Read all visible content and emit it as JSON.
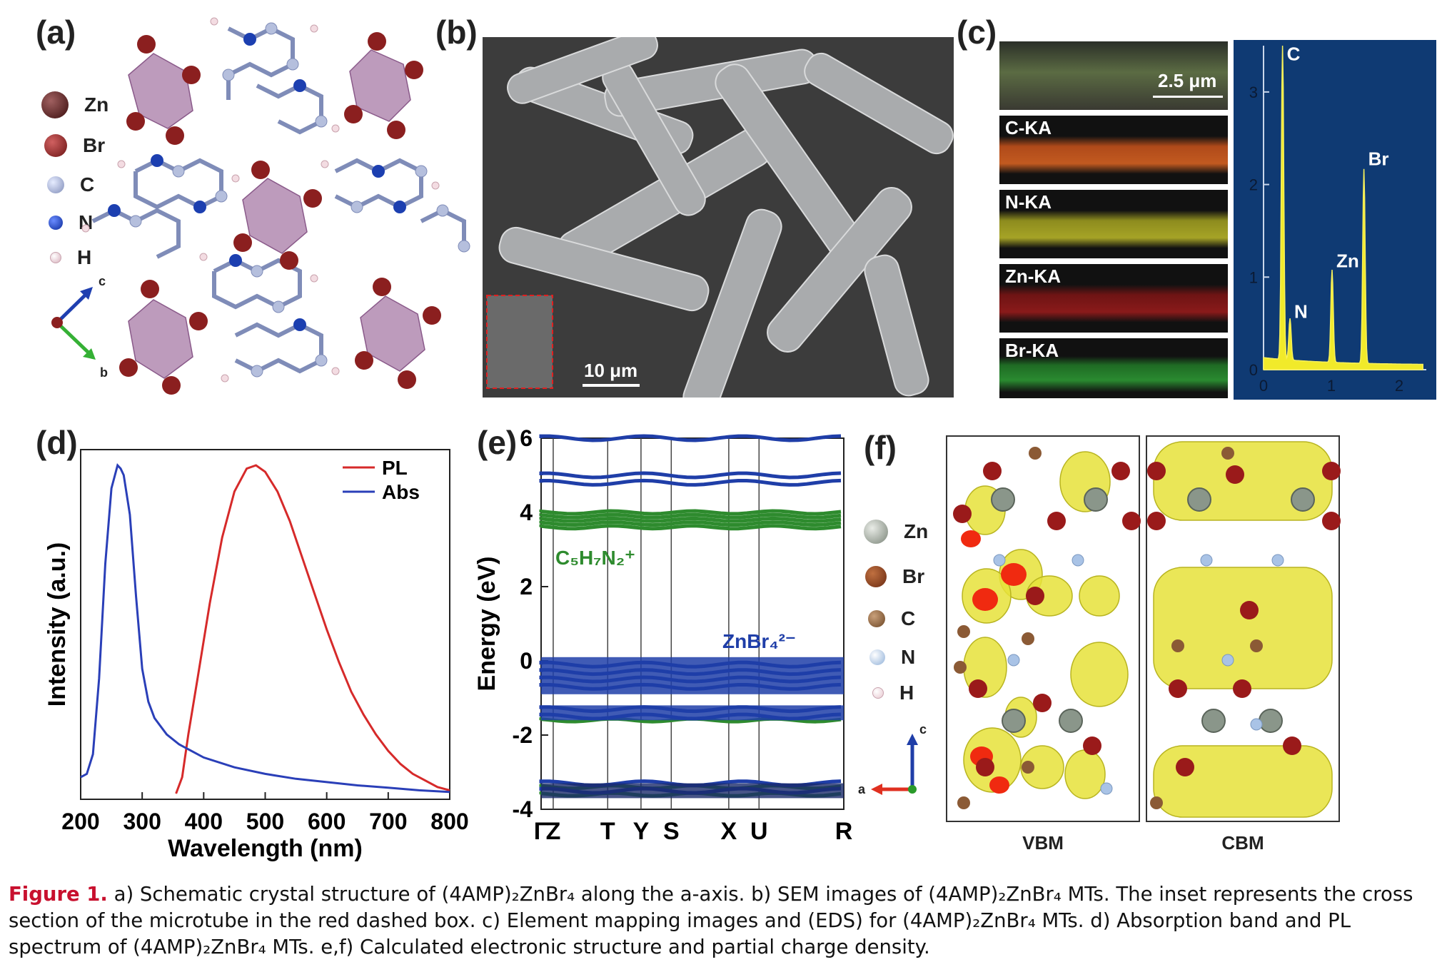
{
  "panels": {
    "a": {
      "label": "(a)",
      "legend": [
        "Zn",
        "Br",
        "C",
        "N",
        "H"
      ],
      "axes": {
        "c": "c",
        "b": "b"
      }
    },
    "b": {
      "label": "(b)",
      "scale_bar": "10 μm"
    },
    "c": {
      "label": "(c)",
      "scale_bar": "2.5 μm",
      "maps": [
        "C-KA",
        "N-KA",
        "Zn-KA",
        "Br-KA"
      ],
      "eds": {
        "yticks": [
          "0",
          "1",
          "2",
          "3"
        ],
        "xticks": [
          "0",
          "1",
          "2"
        ],
        "peaks": [
          "C",
          "N",
          "Zn",
          "Br"
        ]
      }
    },
    "d": {
      "label": "(d)"
    },
    "e": {
      "label": "(e)",
      "species_green": "C5H7N2+",
      "species_blue": "ZnBr42-",
      "axis_a": "a",
      "axis_c": "c"
    },
    "f": {
      "label": "(f)",
      "legend": [
        "Zn",
        "Br",
        "C",
        "N",
        "H"
      ],
      "titles": [
        "VBM",
        "CBM"
      ]
    }
  },
  "colors": {
    "zn": "#4a1a1a",
    "br": "#8b1f1f",
    "c": "#9aa6c8",
    "n": "#1c3fb0",
    "h": "#e8c8d0",
    "pl": "#d62a2a",
    "abs": "#2a3fb8",
    "green_band": "#2e8b2e",
    "blue_band": "#1f3ea8",
    "iso_yellow": "#e6e23a",
    "caption_red": "#c8102e"
  },
  "chart_data": [
    {
      "type": "line",
      "panel": "d",
      "xlabel": "Wavelength (nm)",
      "ylabel": "Intensity (a.u.)",
      "xlim": [
        200,
        800
      ],
      "xticks": [
        200,
        300,
        400,
        500,
        600,
        700,
        800
      ],
      "legend_position": "top-right",
      "series": [
        {
          "name": "PL",
          "color": "#d62a2a",
          "x": [
            355,
            365,
            375,
            390,
            410,
            430,
            450,
            470,
            485,
            500,
            520,
            540,
            560,
            580,
            600,
            620,
            640,
            660,
            680,
            700,
            720,
            740,
            760,
            780,
            800
          ],
          "y": [
            0.0,
            0.05,
            0.18,
            0.35,
            0.58,
            0.78,
            0.92,
            0.99,
            1.0,
            0.98,
            0.92,
            0.83,
            0.72,
            0.61,
            0.5,
            0.4,
            0.31,
            0.24,
            0.18,
            0.13,
            0.09,
            0.06,
            0.04,
            0.02,
            0.01
          ]
        },
        {
          "name": "Abs",
          "color": "#2a3fb8",
          "x": [
            200,
            210,
            220,
            230,
            240,
            250,
            260,
            265,
            270,
            280,
            290,
            300,
            310,
            320,
            340,
            360,
            380,
            400,
            450,
            500,
            550,
            600,
            650,
            700,
            750,
            800
          ],
          "y": [
            0.05,
            0.06,
            0.12,
            0.35,
            0.7,
            0.93,
            1.0,
            0.99,
            0.97,
            0.85,
            0.6,
            0.38,
            0.28,
            0.23,
            0.18,
            0.15,
            0.13,
            0.11,
            0.08,
            0.06,
            0.045,
            0.035,
            0.025,
            0.018,
            0.01,
            0.005
          ]
        }
      ]
    },
    {
      "type": "line",
      "panel": "e",
      "ylabel": "Energy (eV)",
      "ylim": [
        -4,
        6
      ],
      "yticks": [
        -4,
        -2,
        0,
        2,
        4,
        6
      ],
      "kpoints": [
        "Γ",
        "Z",
        "T",
        "Y",
        "S",
        "X",
        "U",
        "R"
      ],
      "bands_green": [
        3.6,
        3.7,
        3.8,
        3.9,
        4.0,
        -1.6,
        -3.4,
        -3.6
      ],
      "bands_blue": [
        6.0,
        5.0,
        4.8,
        -0.1,
        -0.3,
        -0.5,
        -0.7,
        -1.3,
        -1.5,
        -3.5,
        -3.3
      ]
    },
    {
      "type": "line",
      "panel": "c",
      "xlim": [
        0,
        2.4
      ],
      "ylim": [
        0,
        3.5
      ],
      "xticks": [
        0,
        1,
        2
      ],
      "yticks": [
        0,
        1,
        2,
        3
      ],
      "peaks": [
        {
          "label": "C",
          "x": 0.28,
          "y": 3.45
        },
        {
          "label": "N",
          "x": 0.39,
          "y": 0.45
        },
        {
          "label": "Zn",
          "x": 1.01,
          "y": 1.0
        },
        {
          "label": "Br",
          "x": 1.48,
          "y": 2.1
        }
      ]
    }
  ],
  "caption": {
    "fig": "Figure 1.",
    "text": "a) Schematic crystal structure of (4AMP)₂ZnBr₄ along the a-axis. b) SEM images of (4AMP)₂ZnBr₄ MTs. The inset represents the cross section of the microtube in the red dashed box. c) Element mapping images and (EDS) for (4AMP)₂ZnBr₄ MTs. d) Absorption band and PL spectrum of (4AMP)₂ZnBr₄ MTs. e,f) Calculated electronic structure and partial charge density."
  }
}
